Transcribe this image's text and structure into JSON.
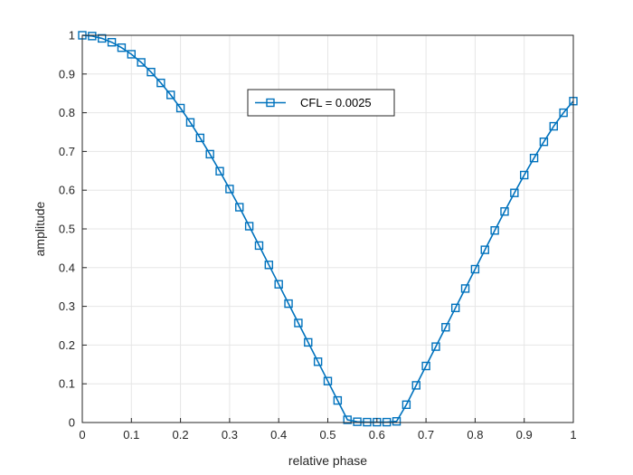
{
  "chart_data": {
    "type": "line",
    "title": "",
    "xlabel": "relative phase",
    "ylabel": "amplitude",
    "xlim": [
      0,
      1
    ],
    "ylim": [
      0,
      1
    ],
    "xticks": [
      "0",
      "0.1",
      "0.2",
      "0.3",
      "0.4",
      "0.5",
      "0.6",
      "0.7",
      "0.8",
      "0.9",
      "1"
    ],
    "yticks": [
      "0",
      "0.1",
      "0.2",
      "0.3",
      "0.4",
      "0.5",
      "0.6",
      "0.7",
      "0.8",
      "0.9",
      "1"
    ],
    "grid": true,
    "legend": "upper-center",
    "marker": "square",
    "x": [
      0,
      0.02,
      0.04,
      0.06,
      0.08,
      0.1,
      0.12,
      0.14,
      0.16,
      0.18,
      0.2,
      0.22,
      0.24,
      0.26,
      0.28,
      0.3,
      0.32,
      0.34,
      0.36,
      0.38,
      0.4,
      0.42,
      0.44,
      0.46,
      0.48,
      0.5,
      0.52,
      0.54,
      0.56,
      0.58,
      0.6,
      0.62,
      0.64,
      0.66,
      0.68,
      0.7,
      0.72,
      0.74,
      0.76,
      0.78,
      0.8,
      0.82,
      0.84,
      0.86,
      0.88,
      0.9,
      0.92,
      0.94,
      0.96,
      0.98,
      1.0
    ],
    "series": [
      {
        "name": "CFL = 0.0025",
        "color": "#0072BD",
        "values": [
          1.0,
          0.998,
          0.992,
          0.982,
          0.968,
          0.951,
          0.93,
          0.905,
          0.877,
          0.846,
          0.812,
          0.775,
          0.735,
          0.693,
          0.649,
          0.603,
          0.556,
          0.507,
          0.457,
          0.407,
          0.357,
          0.307,
          0.257,
          0.207,
          0.157,
          0.107,
          0.057,
          0.007,
          0.002,
          0.001,
          0.001,
          0.001,
          0.003,
          0.046,
          0.096,
          0.146,
          0.196,
          0.246,
          0.296,
          0.346,
          0.396,
          0.446,
          0.496,
          0.545,
          0.593,
          0.639,
          0.683,
          0.725,
          0.765,
          0.8,
          0.83
        ]
      }
    ]
  }
}
